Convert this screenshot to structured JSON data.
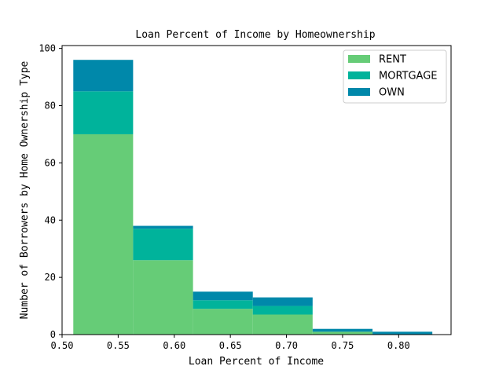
{
  "chart_data": {
    "type": "bar",
    "stacked": true,
    "histogram": true,
    "title": "Loan Percent of Income by Homeownership",
    "xlabel": "Loan Percent of Income",
    "ylabel": "Number of Borrowers by Home Ownership Type",
    "bin_edges": [
      0.51,
      0.5633,
      0.6167,
      0.67,
      0.7233,
      0.7767,
      0.83
    ],
    "series": [
      {
        "name": "RENT",
        "color": "#66cc77",
        "values": [
          70,
          26,
          9,
          7,
          1,
          0
        ]
      },
      {
        "name": "MORTGAGE",
        "color": "#00b39b",
        "values": [
          15,
          11,
          3,
          3,
          0,
          0
        ]
      },
      {
        "name": "OWN",
        "color": "#0088aa",
        "values": [
          11,
          1,
          3,
          3,
          1,
          1
        ]
      }
    ],
    "xlim": [
      0.5,
      0.8467
    ],
    "ylim": [
      0,
      101
    ],
    "xticks": [
      "0.50",
      "0.55",
      "0.60",
      "0.65",
      "0.70",
      "0.75",
      "0.80"
    ],
    "xtick_values": [
      0.5,
      0.55,
      0.6,
      0.65,
      0.7,
      0.75,
      0.8
    ],
    "yticks": [
      "0",
      "20",
      "40",
      "60",
      "80",
      "100"
    ],
    "ytick_values": [
      0,
      20,
      40,
      60,
      80,
      100
    ],
    "grid": false,
    "legend_position": "top-right"
  }
}
